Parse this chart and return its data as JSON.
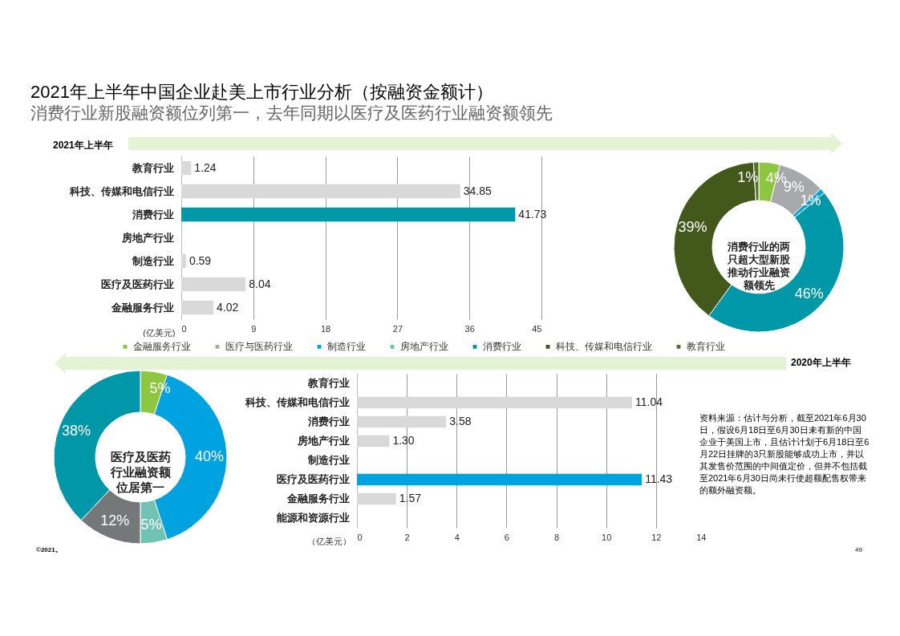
{
  "chart_data": [
    {
      "type": "bar",
      "orientation": "horizontal",
      "title": "2021年上半年中国企业赴美上市行业分析（按融资金额计）",
      "subtitle": "消费行业新股融资额位列第一，去年同期以医疗及医药行业融资额领先",
      "xlabel": "(亿美元)",
      "categories": [
        "教育行业",
        "科技、传媒和电信行业",
        "消费行业",
        "房地产行业",
        "制造行业",
        "医疗及医药行业",
        "金融服务行业"
      ],
      "values": [
        1.24,
        34.85,
        41.73,
        null,
        0.59,
        8.04,
        4.02
      ],
      "colors": [
        "#d9d9d9",
        "#d9d9d9",
        "#0097a9",
        "#d9d9d9",
        "#d9d9d9",
        "#d9d9d9",
        "#d9d9d9"
      ],
      "xlim": [
        0,
        45
      ],
      "xticks": [
        0,
        9,
        18,
        27,
        36,
        45
      ],
      "grid": "x",
      "data_labels": true,
      "annotations": [
        "2021年上半年"
      ]
    },
    {
      "type": "donut",
      "categories": [
        "金融服务行业",
        "医疗与医药行业",
        "制造行业",
        "房地产行业",
        "消费行业",
        "科技、传媒和电信行业",
        "教育行业"
      ],
      "values": [
        4,
        9,
        1,
        0,
        46,
        39,
        1
      ],
      "value_labels": [
        "4%",
        "9%",
        "1%",
        null,
        "46%",
        "39%",
        "1%"
      ],
      "colors": [
        "#8dc63f",
        "#a7a8aa",
        "#00a3e0",
        "#6fc2b4",
        "#0097a9",
        "#43591b",
        "#56732a"
      ],
      "legend": "bottom",
      "annotations": [
        "消费行业的两只超大型新股推动行业融资额领先"
      ]
    },
    {
      "type": "donut",
      "categories": [
        null,
        null,
        null,
        null,
        null
      ],
      "values": [
        5,
        40,
        5,
        12,
        38
      ],
      "value_labels": [
        "5%",
        "40%",
        "5%",
        "12%",
        "38%"
      ],
      "colors": [
        "#8dc63f",
        "#00a3e0",
        "#6fc2b4",
        "#75787b",
        "#0097a9"
      ],
      "annotations": [
        "医疗及医药行业融资额位居第一"
      ]
    },
    {
      "type": "bar",
      "orientation": "horizontal",
      "xlabel": "（亿美元）",
      "categories": [
        "教育行业",
        "科技、传媒和电信行业",
        "消费行业",
        "房地产行业",
        "制造行业",
        "医疗及医药行业",
        "金融服务行业",
        "能源和资源行业"
      ],
      "values": [
        null,
        11.04,
        3.58,
        1.3,
        null,
        11.43,
        1.57,
        null
      ],
      "value_labels": [
        null,
        "11.04",
        "3.58",
        "1.30",
        null,
        "11.43",
        "1.57",
        null
      ],
      "colors": [
        "#d9d9d9",
        "#d9d9d9",
        "#d9d9d9",
        "#d9d9d9",
        "#d9d9d9",
        "#00a3e0",
        "#d9d9d9",
        "#d9d9d9"
      ],
      "xlim": [
        0,
        14
      ],
      "xticks": [
        0,
        2,
        4,
        6,
        8,
        10,
        12,
        14
      ],
      "grid": "x",
      "annotations": [
        "2020年上半年",
        "资料来源：估计与分析，截至2021年6月30日，假设6月18日至6月30日未有新的中国企业于美国上市，且估计计划于6月18日至6月22日挂牌的3只新股能够成功上市，并以其发售价范围的中间值定价，但并不包括截至2021年6月30日尚未行使超额配售权带来的额外融资额。",
        "©2021。",
        "49"
      ]
    }
  ]
}
